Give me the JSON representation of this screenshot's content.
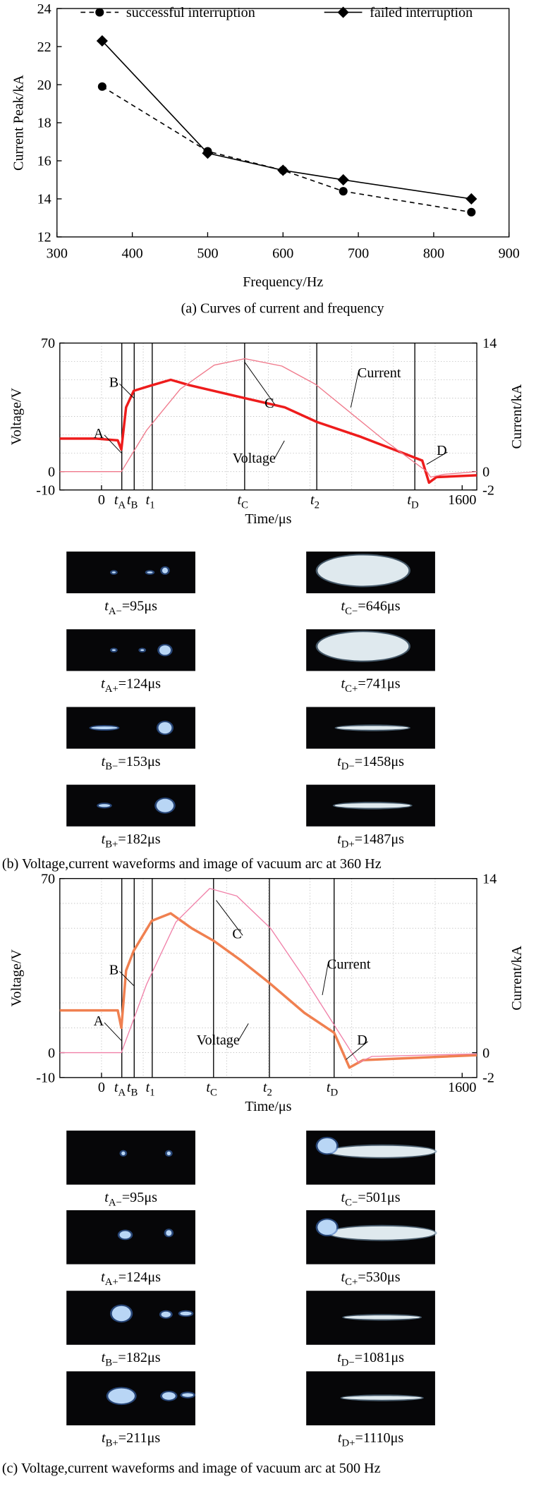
{
  "chart_data": [
    {
      "type": "line",
      "x_label": "Frequency/Hz",
      "y_label": "Current Peak/kA",
      "caption": "(a)  Curves of current and frequency",
      "x": [
        360,
        500,
        600,
        680,
        850
      ],
      "series": [
        {
          "name": "successful interruption",
          "color": "#000000",
          "style": "dashed",
          "marker": "circle",
          "values": [
            19.9,
            16.5,
            15.5,
            14.4,
            13.3
          ]
        },
        {
          "name": "failed interruption",
          "color": "#000000",
          "style": "solid",
          "marker": "diamond",
          "values": [
            22.3,
            16.4,
            15.5,
            15.0,
            14.0
          ]
        }
      ],
      "xlim": [
        300,
        900
      ],
      "xticks": [
        300,
        400,
        500,
        600,
        700,
        800,
        900
      ],
      "ylim": [
        12,
        24
      ],
      "yticks": [
        12,
        14,
        16,
        18,
        20,
        22,
        24
      ],
      "legend": "top"
    },
    {
      "type": "waveform",
      "x_label": "Time/μs",
      "y_label": "Voltage/V",
      "y2_label": "Current/kA",
      "caption": "(b)  Voltage,current waveforms and image of vacuum arc at 360 Hz",
      "xlim": [
        -185,
        1665
      ],
      "xticks": [
        0,
        {
          "value": 90,
          "label": "t",
          "sub": "A"
        },
        {
          "value": 145,
          "label": "t",
          "sub": "B"
        },
        {
          "value": 225,
          "label": "t",
          "sub": "1"
        },
        {
          "value": 635,
          "label": "t",
          "sub": "C"
        },
        {
          "value": 955,
          "label": "t",
          "sub": "2"
        },
        {
          "value": 1390,
          "label": "t",
          "sub": "D"
        },
        1600
      ],
      "ylim": [
        -10,
        70
      ],
      "yticks": [
        -10,
        0,
        70
      ],
      "y2lim": [
        -2,
        14
      ],
      "y2ticks": [
        -2,
        0,
        14
      ],
      "series": [
        {
          "name": "Voltage",
          "color": "#ee1c1c",
          "x": [
            -185,
            -29,
            72,
            88,
            109,
            143,
            223,
            307,
            392,
            636,
            813,
            956,
            1149,
            1318,
            1423,
            1453,
            1486,
            1665
          ],
          "values": [
            18,
            18,
            17,
            12,
            35,
            44,
            47,
            50,
            47,
            40,
            35,
            27,
            19,
            11,
            6,
            -6,
            -3,
            -2
          ]
        },
        {
          "name": "Current",
          "color": "#f07a8c",
          "axis": "y2",
          "x": [
            -185,
            88,
            200,
            350,
            500,
            636,
            800,
            950,
            1100,
            1250,
            1444,
            1460,
            1520,
            1665
          ],
          "values": [
            0,
            0,
            4.5,
            9,
            11.6,
            12.3,
            11.5,
            9.5,
            6.5,
            3.5,
            0,
            -0.6,
            -0.3,
            0
          ]
        }
      ],
      "annotations": [
        "A",
        "B",
        "C",
        "D"
      ],
      "frames": [
        {
          "var": "t",
          "sub": "A−",
          "text": "=95μs"
        },
        {
          "var": "t",
          "sub": "A+",
          "text": "=124μs"
        },
        {
          "var": "t",
          "sub": "B−",
          "text": "=153μs"
        },
        {
          "var": "t",
          "sub": "B+",
          "text": "=182μs"
        },
        {
          "var": "t",
          "sub": "C−",
          "text": "=646μs"
        },
        {
          "var": "t",
          "sub": "C+",
          "text": "=741μs"
        },
        {
          "var": "t",
          "sub": "D−",
          "text": "=1458μs"
        },
        {
          "var": "t",
          "sub": "D+",
          "text": "=1487μs"
        }
      ]
    },
    {
      "type": "waveform",
      "x_label": "Time/μs",
      "y_label": "Voltage/V",
      "y2_label": "Current/kA",
      "caption": "(c)  Voltage,current waveforms and image of vacuum arc at 500 Hz",
      "xlim": [
        -185,
        1665
      ],
      "xticks": [
        0,
        {
          "value": 90,
          "label": "t",
          "sub": "A"
        },
        {
          "value": 145,
          "label": "t",
          "sub": "B"
        },
        {
          "value": 225,
          "label": "t",
          "sub": "1"
        },
        {
          "value": 497,
          "label": "t",
          "sub": "C"
        },
        {
          "value": 745,
          "label": "t",
          "sub": "2"
        },
        {
          "value": 1032,
          "label": "t",
          "sub": "D"
        },
        1600
      ],
      "ylim": [
        -10,
        70
      ],
      "yticks": [
        -10,
        0,
        70
      ],
      "y2lim": [
        -2,
        14
      ],
      "y2ticks": [
        -2,
        0,
        14
      ],
      "series": [
        {
          "name": "Voltage",
          "color": "#f08050",
          "x": [
            -185,
            72,
            88,
            109,
            143,
            223,
            307,
            400,
            497,
            620,
            745,
            900,
            1032,
            1100,
            1160,
            1665
          ],
          "values": [
            17,
            17,
            10,
            33,
            41,
            53,
            56,
            50,
            45,
            37,
            28,
            16,
            8,
            -6,
            -3,
            -1
          ]
        },
        {
          "name": "Current",
          "color": "#f080a8",
          "axis": "y2",
          "x": [
            -185,
            88,
            200,
            330,
            480,
            600,
            750,
            900,
            1040,
            1110,
            1140,
            1200,
            1665
          ],
          "values": [
            0,
            0,
            5.5,
            10.5,
            13.2,
            12.6,
            10,
            6,
            2,
            0,
            -0.8,
            -0.3,
            -0.1
          ]
        }
      ],
      "annotations": [
        "A",
        "B",
        "C",
        "D"
      ],
      "frames": [
        {
          "var": "t",
          "sub": "A−",
          "text": "=95μs"
        },
        {
          "var": "t",
          "sub": "A+",
          "text": "=124μs"
        },
        {
          "var": "t",
          "sub": "B−",
          "text": "=182μs"
        },
        {
          "var": "t",
          "sub": "B+",
          "text": "=211μs"
        },
        {
          "var": "t",
          "sub": "C−",
          "text": "=501μs"
        },
        {
          "var": "t",
          "sub": "C+",
          "text": "=530μs"
        },
        {
          "var": "t",
          "sub": "D−",
          "text": "=1081μs"
        },
        {
          "var": "t",
          "sub": "D+",
          "text": "=1110μs"
        }
      ]
    }
  ]
}
